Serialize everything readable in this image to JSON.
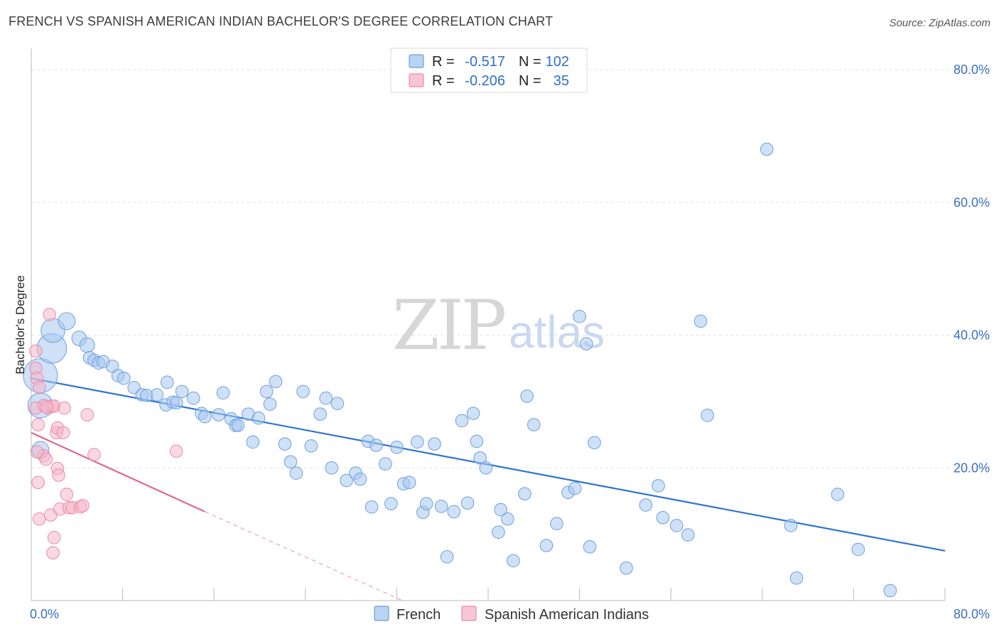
{
  "title": "FRENCH VS SPANISH AMERICAN INDIAN BACHELOR'S DEGREE CORRELATION CHART",
  "source": "Source: ZipAtlas.com",
  "watermark": {
    "zip": "ZIP",
    "atlas": "atlas"
  },
  "legend_top": {
    "rows": [
      {
        "r_label": "R =",
        "r_value": "-0.517",
        "n_label": "N =",
        "n_value": "102",
        "color": "#a8c8f0"
      },
      {
        "r_label": "R =",
        "r_value": "-0.206",
        "n_label": "N =",
        "n_value": "35",
        "color": "#f5b8cb"
      }
    ]
  },
  "chart_data": {
    "type": "scatter",
    "title": "FRENCH VS SPANISH AMERICAN INDIAN BACHELOR'S DEGREE CORRELATION CHART",
    "xlabel": "",
    "ylabel": "Bachelor's Degree",
    "xlim": [
      0,
      80
    ],
    "ylim": [
      0,
      80
    ],
    "x_tick_labels": [
      "0.0%",
      "80.0%"
    ],
    "y_tick_labels": [
      {
        "value": 20,
        "label": "20.0%"
      },
      {
        "value": 40,
        "label": "40.0%"
      },
      {
        "value": 60,
        "label": "60.0%"
      },
      {
        "value": 80,
        "label": "80.0%"
      }
    ],
    "grid": true,
    "legend": "bottom-center",
    "series": [
      {
        "name": "French",
        "color": "#a8c8f0",
        "stroke": "#6f9fdc",
        "trend": {
          "x0": 0,
          "y0": 33.5,
          "x1": 80,
          "y1": 7.5,
          "color": "#2e74d0"
        },
        "points": [
          [
            0.8,
            33.9,
            3
          ],
          [
            0.8,
            29.4,
            2.2
          ],
          [
            1.8,
            38.0,
            2.6
          ],
          [
            1.9,
            40.7,
            2.1
          ],
          [
            3.1,
            42.1,
            1.5
          ],
          [
            4.2,
            39.5,
            1.3
          ],
          [
            4.9,
            38.5,
            1.3
          ],
          [
            0.8,
            22.7,
            1.5
          ],
          [
            5.1,
            36.6,
            1.1
          ],
          [
            5.5,
            36.2,
            1.1
          ],
          [
            5.9,
            35.8,
            1.1
          ],
          [
            6.3,
            36.0,
            1.1
          ],
          [
            7.1,
            35.3,
            1.1
          ],
          [
            7.6,
            33.9,
            1.1
          ],
          [
            8.1,
            33.5,
            1.1
          ],
          [
            9.0,
            32.1,
            1.1
          ],
          [
            9.7,
            31.0,
            1.1
          ],
          [
            10.1,
            30.9,
            1.1
          ],
          [
            11.0,
            31.0,
            1.1
          ],
          [
            11.8,
            29.5,
            1.1
          ],
          [
            11.9,
            32.9,
            1.1
          ],
          [
            12.4,
            29.9,
            1.1
          ],
          [
            12.7,
            29.8,
            1.1
          ],
          [
            13.2,
            31.5,
            1.1
          ],
          [
            14.2,
            30.5,
            1.1
          ],
          [
            14.9,
            28.2,
            1.1
          ],
          [
            15.2,
            27.7,
            1.1
          ],
          [
            16.4,
            28.0,
            1.1
          ],
          [
            16.8,
            31.3,
            1.1
          ],
          [
            17.5,
            27.4,
            1.1
          ],
          [
            17.9,
            26.4,
            1.1
          ],
          [
            18.1,
            26.4,
            1.1
          ],
          [
            19.0,
            28.1,
            1.1
          ],
          [
            19.4,
            23.9,
            1.1
          ],
          [
            19.9,
            27.5,
            1.1
          ],
          [
            20.6,
            31.5,
            1.1
          ],
          [
            20.9,
            29.6,
            1.1
          ],
          [
            21.4,
            33.0,
            1.1
          ],
          [
            22.2,
            23.6,
            1.1
          ],
          [
            22.7,
            20.9,
            1.1
          ],
          [
            23.2,
            19.2,
            1.1
          ],
          [
            23.8,
            31.5,
            1.1
          ],
          [
            24.5,
            23.3,
            1.1
          ],
          [
            25.3,
            28.1,
            1.1
          ],
          [
            25.8,
            30.5,
            1.1
          ],
          [
            26.3,
            20.0,
            1.1
          ],
          [
            26.8,
            29.7,
            1.1
          ],
          [
            27.6,
            18.1,
            1.1
          ],
          [
            28.4,
            19.2,
            1.1
          ],
          [
            28.8,
            18.3,
            1.1
          ],
          [
            29.5,
            24.0,
            1.1
          ],
          [
            29.8,
            14.1,
            1.1
          ],
          [
            30.2,
            23.4,
            1.1
          ],
          [
            31.0,
            20.6,
            1.1
          ],
          [
            31.5,
            14.6,
            1.1
          ],
          [
            32.0,
            23.1,
            1.1
          ],
          [
            32.6,
            17.6,
            1.1
          ],
          [
            33.1,
            17.8,
            1.1
          ],
          [
            33.8,
            23.9,
            1.1
          ],
          [
            34.3,
            13.3,
            1.1
          ],
          [
            34.6,
            14.6,
            1.1
          ],
          [
            35.3,
            23.6,
            1.1
          ],
          [
            35.9,
            14.2,
            1.1
          ],
          [
            36.4,
            6.6,
            1.1
          ],
          [
            37.0,
            13.4,
            1.1
          ],
          [
            37.7,
            27.1,
            1.1
          ],
          [
            38.2,
            14.7,
            1.1
          ],
          [
            38.7,
            28.2,
            1.1
          ],
          [
            39.0,
            24.0,
            1.1
          ],
          [
            39.3,
            21.5,
            1.1
          ],
          [
            39.8,
            20.0,
            1.1
          ],
          [
            40.9,
            10.3,
            1.1
          ],
          [
            41.1,
            13.7,
            1.1
          ],
          [
            41.7,
            12.3,
            1.1
          ],
          [
            42.2,
            6.0,
            1.1
          ],
          [
            43.2,
            16.1,
            1.1
          ],
          [
            43.4,
            30.8,
            1.1
          ],
          [
            44.0,
            26.5,
            1.1
          ],
          [
            45.1,
            8.3,
            1.1
          ],
          [
            46.0,
            11.6,
            1.1
          ],
          [
            47.0,
            16.3,
            1.1
          ],
          [
            47.6,
            16.9,
            1.1
          ],
          [
            48.0,
            42.8,
            1.1
          ],
          [
            48.6,
            38.7,
            1.1
          ],
          [
            48.9,
            8.1,
            1.1
          ],
          [
            49.3,
            23.8,
            1.1
          ],
          [
            52.1,
            4.9,
            1.1
          ],
          [
            53.8,
            14.4,
            1.1
          ],
          [
            54.9,
            17.3,
            1.1
          ],
          [
            55.3,
            12.5,
            1.1
          ],
          [
            56.5,
            11.3,
            1.1
          ],
          [
            57.5,
            9.9,
            1.1
          ],
          [
            58.6,
            42.1,
            1.1
          ],
          [
            59.2,
            27.9,
            1.1
          ],
          [
            64.4,
            68.0,
            1.1
          ],
          [
            66.5,
            11.3,
            1.1
          ],
          [
            67.0,
            3.4,
            1.1
          ],
          [
            70.6,
            16.0,
            1.1
          ],
          [
            72.4,
            7.7,
            1.1
          ],
          [
            75.2,
            1.5,
            1.1
          ]
        ]
      },
      {
        "name": "Spanish American Indians",
        "color": "#f5b8cb",
        "stroke": "#ea8aa9",
        "trend": {
          "x0": 0,
          "y0": 25.3,
          "x1": 15.2,
          "y1": 13.4,
          "color": "#e06890",
          "dash_to": {
            "x": 32.5,
            "y": 0
          }
        },
        "points": [
          [
            0.4,
            37.6,
            1.1
          ],
          [
            0.4,
            35.0,
            1.1
          ],
          [
            0.5,
            33.5,
            1.1
          ],
          [
            0.7,
            32.1,
            1.1
          ],
          [
            0.4,
            29.0,
            1.1
          ],
          [
            0.6,
            26.5,
            1.1
          ],
          [
            0.6,
            17.8,
            1.1
          ],
          [
            0.7,
            12.3,
            1.1
          ],
          [
            1.1,
            29.4,
            1.1
          ],
          [
            1.1,
            21.8,
            1.1
          ],
          [
            1.3,
            21.3,
            1.1
          ],
          [
            1.5,
            29.0,
            1.1
          ],
          [
            1.6,
            43.1,
            1.1
          ],
          [
            1.7,
            12.9,
            1.1
          ],
          [
            1.8,
            29.3,
            1.1
          ],
          [
            2.0,
            29.3,
            1.1
          ],
          [
            1.9,
            7.2,
            1.1
          ],
          [
            2.0,
            9.5,
            1.1
          ],
          [
            2.2,
            25.3,
            1.1
          ],
          [
            2.3,
            26.0,
            1.1
          ],
          [
            2.3,
            19.9,
            1.1
          ],
          [
            2.4,
            18.9,
            1.1
          ],
          [
            2.5,
            13.8,
            1.1
          ],
          [
            2.8,
            25.3,
            1.1
          ],
          [
            2.9,
            29.0,
            1.1
          ],
          [
            3.1,
            16.0,
            1.1
          ],
          [
            3.3,
            14.0,
            1.1
          ],
          [
            3.6,
            14.0,
            1.1
          ],
          [
            4.3,
            14.1,
            1.1
          ],
          [
            4.5,
            14.3,
            1.1
          ],
          [
            4.9,
            28.0,
            1.1
          ],
          [
            5.5,
            22.0,
            1.1
          ],
          [
            12.7,
            22.5,
            1.1
          ],
          [
            0.5,
            22.4,
            1.1
          ],
          [
            1.3,
            29.2,
            1.1
          ]
        ]
      }
    ]
  }
}
